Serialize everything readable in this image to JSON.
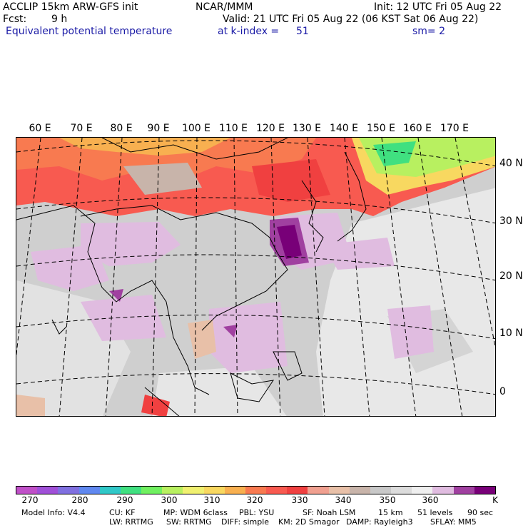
{
  "header": {
    "model": "ACCLIP 15km ARW-GFS init",
    "center": "NCAR/MMM",
    "init": "Init: 12 UTC Fri 05 Aug 22",
    "fcst_label": "Fcst:",
    "fcst_value": "9 h",
    "valid": "Valid: 21 UTC Fri 05 Aug 22 (06 KST Sat 06 Aug 22)",
    "field": "Equivalent potential temperature",
    "level": "at k-index =",
    "level_value": "51",
    "smooth": "sm= 2"
  },
  "map": {
    "lon_labels": [
      "60 E",
      "70 E",
      "80 E",
      "90 E",
      "100 E",
      "110 E",
      "120 E",
      "130 E",
      "140 E",
      "150 E",
      "160 E",
      "170 E"
    ],
    "lat_labels": [
      "40 N",
      "30 N",
      "20 N",
      "10 N",
      "0"
    ]
  },
  "colorbar": {
    "colors": [
      "#c050c8",
      "#a050d8",
      "#8070e0",
      "#6088f0",
      "#30c8c8",
      "#40e080",
      "#70f060",
      "#b8f060",
      "#f0f070",
      "#f8d860",
      "#f8b050",
      "#f87a50",
      "#f85a50",
      "#f04040",
      "#f0a090",
      "#e8c0a8",
      "#c8b4aa",
      "#c8c8c8",
      "#dcdcdc",
      "#efefef",
      "#e0bce0",
      "#a040a0",
      "#780078"
    ],
    "labels": [
      "270",
      "280",
      "290",
      "300",
      "310",
      "320",
      "330",
      "340",
      "350",
      "360",
      "K"
    ]
  },
  "footer": {
    "line1": [
      "Model Info: V4.4",
      "CU: KF",
      "MP: WDM 6class",
      "PBL: YSU",
      "SF: Noah LSM",
      "15 km",
      "51 levels",
      "90 sec"
    ],
    "line2": [
      "LW: RRTMG",
      "SW: RRTMG",
      "DIFF: simple",
      "KM: 2D Smagor",
      "DAMP: Rayleigh3",
      "SFLAY: MM5"
    ]
  }
}
